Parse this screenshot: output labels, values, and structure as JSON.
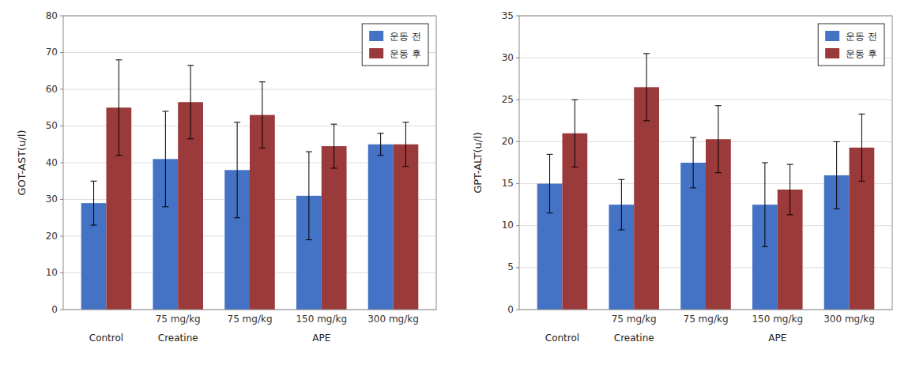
{
  "chart_data": [
    {
      "type": "bar",
      "ylabel": "GOT-AST(u/l)",
      "categories": [
        null,
        "75 mg/kg",
        "75 mg/kg",
        "150 mg/kg",
        "300 mg/kg"
      ],
      "series": [
        {
          "name": "운동 전",
          "color": "#4472C4",
          "values": [
            29,
            41,
            38,
            31,
            45
          ],
          "errors": [
            6,
            13,
            13,
            12,
            3
          ]
        },
        {
          "name": "운동 후",
          "color": "#9B3A3A",
          "values": [
            55,
            56.5,
            53,
            44.5,
            45
          ],
          "errors": [
            13,
            10,
            9,
            6,
            6
          ]
        }
      ],
      "ylim": [
        0,
        80
      ],
      "yticks": [
        0,
        10,
        20,
        30,
        40,
        50,
        60,
        70,
        80
      ],
      "grid": true,
      "legend": "upper right",
      "annotations": [
        {
          "text": "Control",
          "category": 0
        },
        {
          "text": "Creatine",
          "category": 1
        },
        {
          "text": "APE",
          "category": 3
        }
      ]
    },
    {
      "type": "bar",
      "ylabel": "GPT-ALT(u/l)",
      "categories": [
        null,
        "75 mg/kg",
        "75 mg/kg",
        "150 mg/kg",
        "300 mg/kg"
      ],
      "series": [
        {
          "name": "운동 전",
          "color": "#4472C4",
          "values": [
            15,
            12.5,
            17.5,
            12.5,
            16
          ],
          "errors": [
            3.5,
            3,
            3,
            5,
            4
          ]
        },
        {
          "name": "운동 후",
          "color": "#9B3A3A",
          "values": [
            21,
            26.5,
            20.3,
            14.3,
            19.3
          ],
          "errors": [
            4,
            4,
            4,
            3,
            4
          ]
        }
      ],
      "ylim": [
        0,
        35
      ],
      "yticks": [
        0,
        5,
        10,
        15,
        20,
        25,
        30,
        35
      ],
      "grid": true,
      "legend": "upper right",
      "annotations": [
        {
          "text": "Control",
          "category": 0
        },
        {
          "text": "Creatine",
          "category": 1
        },
        {
          "text": "APE",
          "category": 3
        }
      ]
    }
  ]
}
